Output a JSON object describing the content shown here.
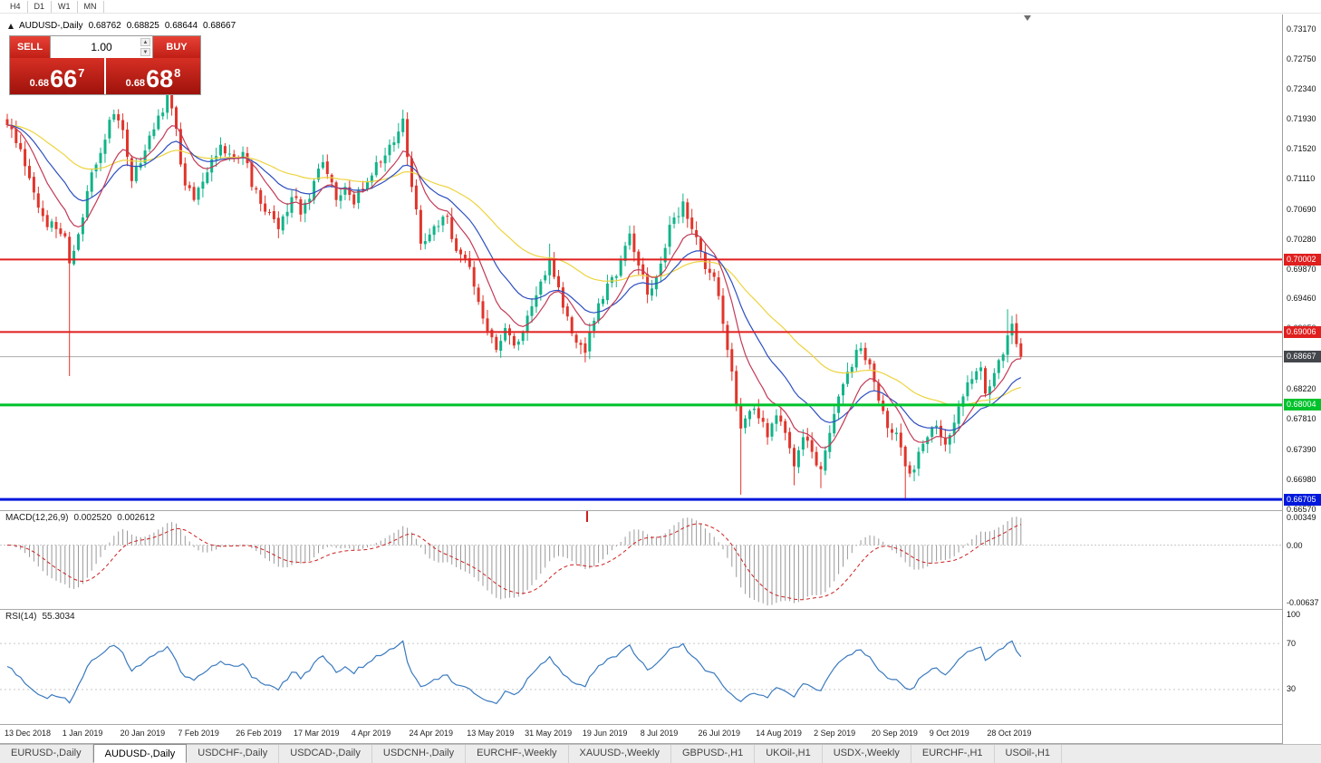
{
  "toolbar": {
    "timeframes": [
      "H4",
      "D1",
      "W1",
      "MN"
    ]
  },
  "chart_header": {
    "title": "AUDUSD-,Daily",
    "open": "0.68762",
    "high": "0.68825",
    "low": "0.68644",
    "close": "0.68667"
  },
  "trade_panel": {
    "sell_label": "SELL",
    "buy_label": "BUY",
    "volume": "1.00",
    "sell_price": {
      "prefix": "0.68",
      "big": "66",
      "sup": "7"
    },
    "buy_price": {
      "prefix": "0.68",
      "big": "68",
      "sup": "8"
    }
  },
  "price_axis": {
    "labels": [
      "0.73170",
      "0.72750",
      "0.72340",
      "0.71930",
      "0.71520",
      "0.71110",
      "0.70690",
      "0.70280",
      "0.69870",
      "0.69460",
      "0.69050",
      "0.68640",
      "0.68220",
      "0.67810",
      "0.67390",
      "0.66980",
      "0.66570"
    ]
  },
  "hlines": [
    {
      "label": "0.70002",
      "value": 0.70002,
      "color": "#e01f1f",
      "thickness": 2,
      "role": "resistance"
    },
    {
      "label": "0.69006",
      "value": 0.69006,
      "color": "#e01f1f",
      "thickness": 2,
      "role": "resistance"
    },
    {
      "label": "0.68667",
      "value": 0.68667,
      "color": "#ababab",
      "tag_color": "#43474c",
      "thickness": 1,
      "role": "bid"
    },
    {
      "label": "0.68004",
      "value": 0.68004,
      "color": "#00c22b",
      "thickness": 3,
      "role": "support"
    },
    {
      "label": "0.66705",
      "value": 0.66705,
      "color": "#0018dc",
      "thickness": 3,
      "role": "support"
    }
  ],
  "macd_panel": {
    "label": "MACD(12,26,9)",
    "value_main": "0.002520",
    "value_signal": "0.002612",
    "axis_labels": [
      "0.00349",
      "0.00",
      "-0.00637"
    ],
    "max": 0.00349,
    "min": -0.00637
  },
  "rsi_panel": {
    "label": "RSI(14)",
    "value": "55.3034",
    "axis_labels": [
      "100",
      "70",
      "30"
    ],
    "levels": [
      70,
      30
    ]
  },
  "date_axis": {
    "bars_per_label": 13,
    "labels": [
      "13 Dec 2018",
      "1 Jan 2019",
      "20 Jan 2019",
      "7 Feb 2019",
      "26 Feb 2019",
      "17 Mar 2019",
      "4 Apr 2019",
      "24 Apr 2019",
      "13 May 2019",
      "31 May 2019",
      "19 Jun 2019",
      "8 Jul 2019",
      "26 Jul 2019",
      "14 Aug 2019",
      "2 Sep 2019",
      "20 Sep 2019",
      "9 Oct 2019",
      "28 Oct 2019"
    ]
  },
  "tabs": [
    {
      "label": "EURUSD-,Daily",
      "active": false
    },
    {
      "label": "AUDUSD-,Daily",
      "active": true
    },
    {
      "label": "USDCHF-,Daily",
      "active": false
    },
    {
      "label": "USDCAD-,Daily",
      "active": false
    },
    {
      "label": "USDCNH-,Daily",
      "active": false
    },
    {
      "label": "EURCHF-,Weekly",
      "active": false
    },
    {
      "label": "XAUUSD-,Weekly",
      "active": false
    },
    {
      "label": "GBPUSD-,H1",
      "active": false
    },
    {
      "label": "UKOil-,H1",
      "active": false
    },
    {
      "label": "USDX-,Weekly",
      "active": false
    },
    {
      "label": "EURCHF-,H1",
      "active": false
    },
    {
      "label": "USOil-,H1",
      "active": false
    }
  ],
  "chart_data": {
    "type": "candlestick",
    "symbol": "AUDUSD",
    "timeframe": "Daily",
    "bars": 229,
    "price_max_axis": 0.7317,
    "price_min_axis": 0.6657,
    "last_close": 0.68667,
    "indicators": {
      "macd": [
        12,
        26,
        9
      ],
      "rsi": 14
    },
    "moving_averages": [
      {
        "period": 50,
        "color": "#edd33f"
      },
      {
        "period": 21,
        "color": "#2d4fc0"
      },
      {
        "period": 10,
        "color": "#c23a56"
      }
    ],
    "colors": {
      "up": "#12b389",
      "down": "#e0352b",
      "macd_hist": "#9a9a9a",
      "macd_signal": "#cc2020",
      "rsi": "#3a7abf",
      "grid_dash": "#c6c6c6"
    },
    "price_keypoints": [
      [
        0,
        0.7185
      ],
      [
        2,
        0.716
      ],
      [
        5,
        0.7112
      ],
      [
        8,
        0.706
      ],
      [
        11,
        0.7042
      ],
      [
        13,
        0.7032
      ],
      [
        14,
        0.6995
      ],
      [
        15,
        0.7012
      ],
      [
        17,
        0.7058
      ],
      [
        19,
        0.712
      ],
      [
        22,
        0.7165
      ],
      [
        24,
        0.72
      ],
      [
        26,
        0.7178
      ],
      [
        28,
        0.7108
      ],
      [
        31,
        0.715
      ],
      [
        34,
        0.7198
      ],
      [
        36,
        0.7228
      ],
      [
        38,
        0.718
      ],
      [
        40,
        0.7102
      ],
      [
        42,
        0.7082
      ],
      [
        45,
        0.712
      ],
      [
        48,
        0.7158
      ],
      [
        51,
        0.714
      ],
      [
        53,
        0.7148
      ],
      [
        55,
        0.71
      ],
      [
        58,
        0.7066
      ],
      [
        61,
        0.7042
      ],
      [
        64,
        0.7086
      ],
      [
        66,
        0.7062
      ],
      [
        69,
        0.7108
      ],
      [
        71,
        0.7134
      ],
      [
        74,
        0.7082
      ],
      [
        76,
        0.71
      ],
      [
        78,
        0.7076
      ],
      [
        81,
        0.7108
      ],
      [
        84,
        0.7134
      ],
      [
        86,
        0.7158
      ],
      [
        88,
        0.7176
      ],
      [
        89,
        0.7194
      ],
      [
        91,
        0.71
      ],
      [
        93,
        0.7022
      ],
      [
        96,
        0.7046
      ],
      [
        99,
        0.706
      ],
      [
        101,
        0.7012
      ],
      [
        104,
        0.699
      ],
      [
        106,
        0.6942
      ],
      [
        108,
        0.6902
      ],
      [
        110,
        0.6876
      ],
      [
        112,
        0.6906
      ],
      [
        114,
        0.6882
      ],
      [
        116,
        0.69
      ],
      [
        118,
        0.6936
      ],
      [
        120,
        0.697
      ],
      [
        122,
        0.7
      ],
      [
        124,
        0.6962
      ],
      [
        126,
        0.6922
      ],
      [
        128,
        0.6886
      ],
      [
        130,
        0.6872
      ],
      [
        132,
        0.6916
      ],
      [
        134,
        0.6946
      ],
      [
        136,
        0.6976
      ],
      [
        138,
        0.7
      ],
      [
        140,
        0.7036
      ],
      [
        142,
        0.6992
      ],
      [
        144,
        0.6952
      ],
      [
        146,
        0.6976
      ],
      [
        148,
        0.7016
      ],
      [
        150,
        0.7058
      ],
      [
        152,
        0.708
      ],
      [
        154,
        0.7042
      ],
      [
        156,
        0.7012
      ],
      [
        158,
        0.6982
      ],
      [
        160,
        0.695
      ],
      [
        162,
        0.6876
      ],
      [
        164,
        0.6802
      ],
      [
        165,
        0.6768
      ],
      [
        167,
        0.6792
      ],
      [
        169,
        0.6782
      ],
      [
        171,
        0.6756
      ],
      [
        173,
        0.6786
      ],
      [
        175,
        0.6762
      ],
      [
        177,
        0.6716
      ],
      [
        179,
        0.6756
      ],
      [
        181,
        0.6736
      ],
      [
        183,
        0.6712
      ],
      [
        185,
        0.6762
      ],
      [
        187,
        0.6812
      ],
      [
        189,
        0.6846
      ],
      [
        191,
        0.6876
      ],
      [
        193,
        0.6862
      ],
      [
        195,
        0.6832
      ],
      [
        197,
        0.6792
      ],
      [
        199,
        0.6762
      ],
      [
        201,
        0.6742
      ],
      [
        202,
        0.6716
      ],
      [
        203,
        0.6706
      ],
      [
        205,
        0.6736
      ],
      [
        207,
        0.6756
      ],
      [
        209,
        0.6772
      ],
      [
        211,
        0.6746
      ],
      [
        213,
        0.6776
      ],
      [
        215,
        0.6812
      ],
      [
        217,
        0.6836
      ],
      [
        219,
        0.6852
      ],
      [
        220,
        0.6816
      ],
      [
        221,
        0.6826
      ],
      [
        223,
        0.6862
      ],
      [
        225,
        0.6896
      ],
      [
        226,
        0.6912
      ],
      [
        227,
        0.6884
      ],
      [
        228,
        0.68667
      ]
    ],
    "special_wicks": [
      {
        "i": 14,
        "low": 0.684
      },
      {
        "i": 89,
        "high": 0.7206
      },
      {
        "i": 122,
        "high": 0.7022
      },
      {
        "i": 152,
        "high": 0.7091
      },
      {
        "i": 165,
        "low": 0.6677
      },
      {
        "i": 177,
        "low": 0.669
      },
      {
        "i": 183,
        "low": 0.6686
      },
      {
        "i": 202,
        "low": 0.6671
      },
      {
        "i": 225,
        "high": 0.6932
      }
    ]
  }
}
